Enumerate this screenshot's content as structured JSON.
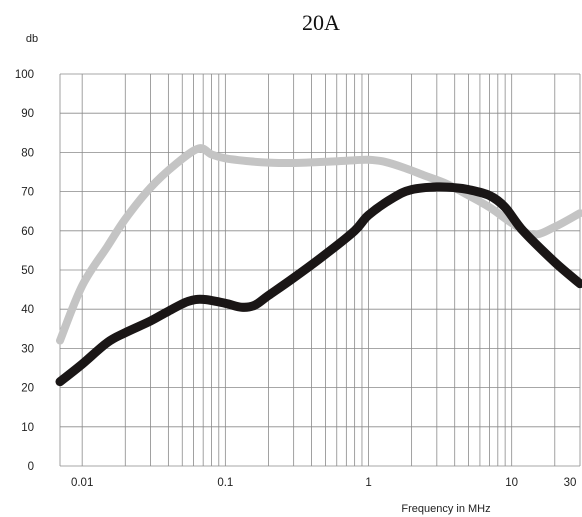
{
  "chart_data": {
    "type": "line",
    "title": "20A",
    "ylabel": "db",
    "xlabel": "Frequency in MHz",
    "x_scale": "log",
    "xlim": [
      0.007,
      30
    ],
    "ylim": [
      0,
      100
    ],
    "grid": true,
    "y_ticks": [
      {
        "value": 0,
        "label": "0"
      },
      {
        "value": 10,
        "label": "10"
      },
      {
        "value": 20,
        "label": "20"
      },
      {
        "value": 30,
        "label": "30"
      },
      {
        "value": 40,
        "label": "40"
      },
      {
        "value": 50,
        "label": "50"
      },
      {
        "value": 60,
        "label": "60"
      },
      {
        "value": 70,
        "label": "70"
      },
      {
        "value": 80,
        "label": "80"
      },
      {
        "value": 90,
        "label": "90"
      },
      {
        "value": 100,
        "label": "100"
      }
    ],
    "x_ticks": [
      {
        "value": 0.01,
        "label": "0.01"
      },
      {
        "value": 0.1,
        "label": "0.1"
      },
      {
        "value": 1,
        "label": "1"
      },
      {
        "value": 10,
        "label": "10"
      },
      {
        "value": 30,
        "label": "30"
      }
    ],
    "series": [
      {
        "color": "#c4c4c4",
        "x": [
          0.007,
          0.01,
          0.015,
          0.02,
          0.03,
          0.045,
          0.065,
          0.08,
          0.1,
          0.15,
          0.2,
          0.3,
          0.5,
          0.8,
          1,
          1.3,
          1.8,
          2.5,
          3.5,
          5,
          7,
          10,
          14,
          20,
          30
        ],
        "values": [
          32,
          46,
          56,
          63,
          71,
          77,
          81,
          79.5,
          78.5,
          77.7,
          77.4,
          77.3,
          77.6,
          78,
          78.1,
          77.6,
          76,
          74,
          72,
          69,
          66,
          62,
          59,
          61,
          64.5
        ]
      },
      {
        "color": "#1a1616",
        "x": [
          0.007,
          0.01,
          0.015,
          0.02,
          0.03,
          0.04,
          0.055,
          0.07,
          0.1,
          0.13,
          0.16,
          0.2,
          0.3,
          0.5,
          0.8,
          1,
          1.5,
          2,
          3,
          4,
          5,
          7,
          9,
          12,
          20,
          30
        ],
        "values": [
          21.5,
          26,
          31.5,
          34,
          37,
          39.5,
          42,
          42.5,
          41.5,
          40.5,
          41,
          43.5,
          48,
          54,
          60,
          64,
          68.5,
          70.5,
          71.2,
          71,
          70.5,
          69,
          66,
          60,
          52,
          46.5
        ]
      }
    ]
  }
}
